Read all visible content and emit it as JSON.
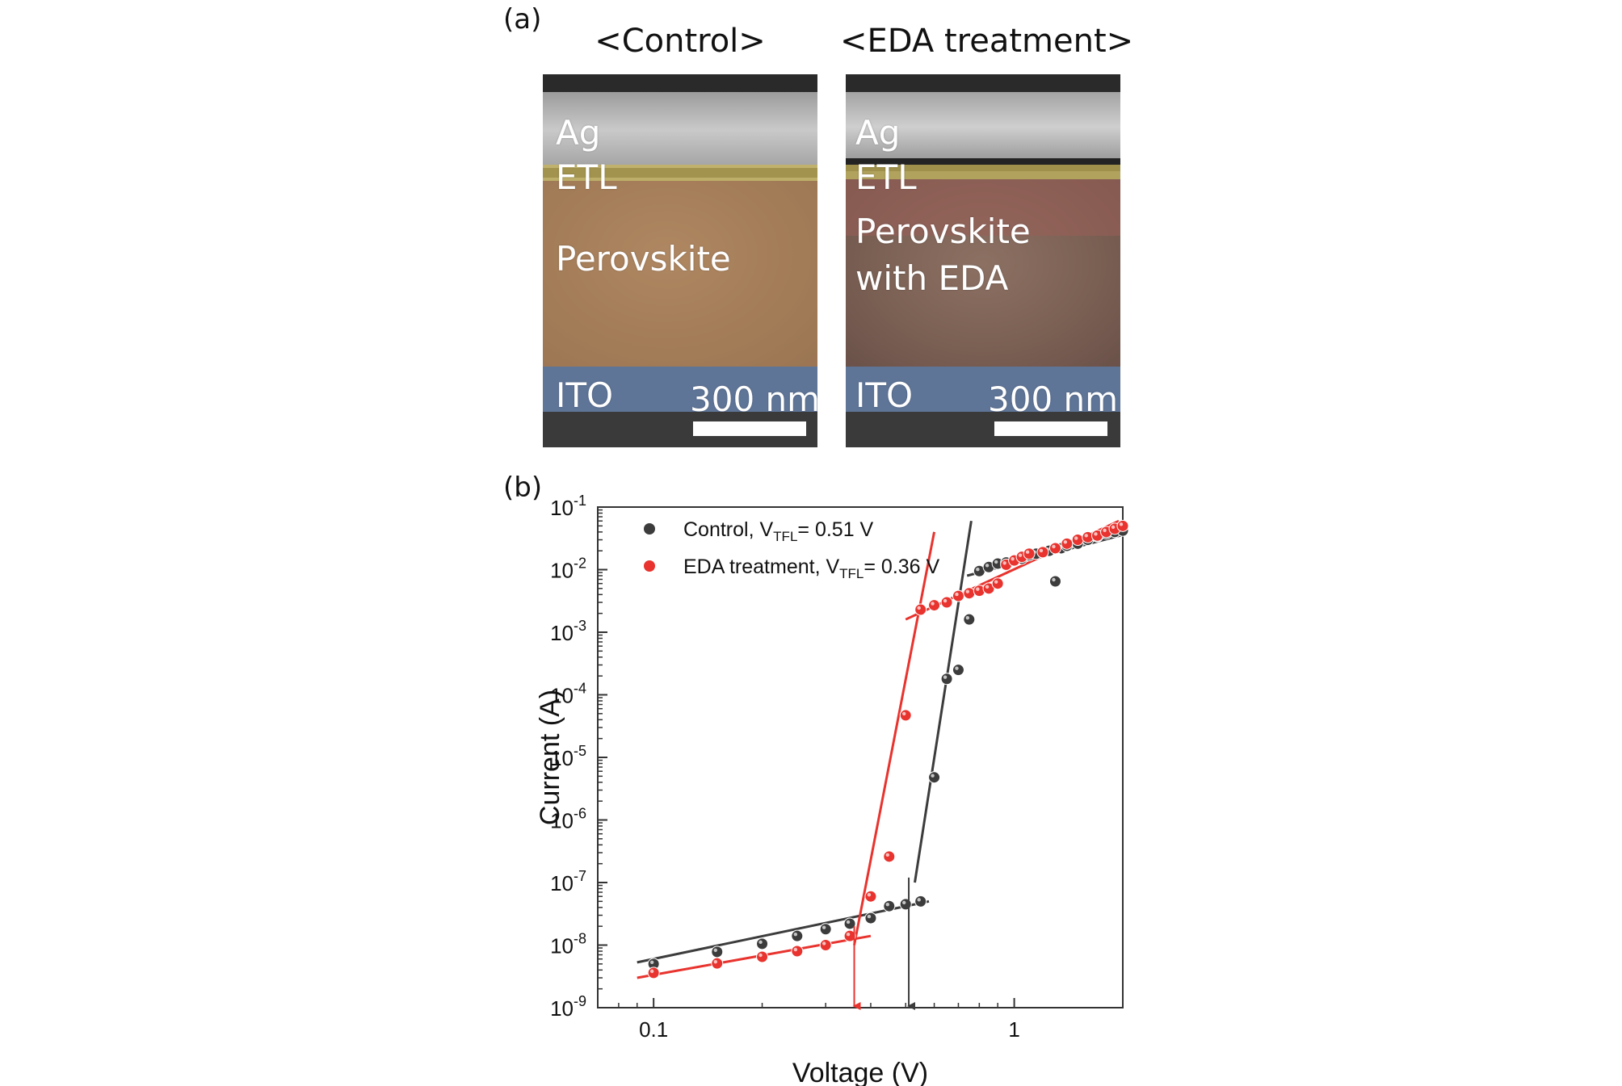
{
  "panel_a": {
    "label": "(a)",
    "control": {
      "title": "<Control>",
      "layers": {
        "ag": "Ag",
        "etl": "ETL",
        "perovskite": "Perovskite",
        "ito": "ITO"
      },
      "scale": "300 nm"
    },
    "eda": {
      "title": "<EDA treatment>",
      "layers": {
        "ag": "Ag",
        "etl": "ETL",
        "perovskite_line1": "Perovskite",
        "perovskite_line2": "with EDA",
        "ito": "ITO"
      },
      "scale": "300 nm"
    },
    "colors": {
      "etl": "#c9b75a",
      "control_perovskite": "#b98a5e",
      "eda_perovskite": "#9b5f58",
      "ito": "#5f7598"
    }
  },
  "panel_b": {
    "label": "(b)",
    "chart_data": {
      "type": "scatter",
      "xlabel": "Voltage (V)",
      "ylabel": "Current (A)",
      "xscale": "log",
      "yscale": "log",
      "xlim": [
        0.07,
        2.0
      ],
      "ylim": [
        1e-09,
        0.1
      ],
      "x_ticks": [
        {
          "value": 0.1,
          "label": "0.1"
        },
        {
          "value": 1,
          "label": "1"
        }
      ],
      "y_ticks": [
        {
          "value": 1e-09,
          "base": "10",
          "exp": "-9"
        },
        {
          "value": 1e-08,
          "base": "10",
          "exp": "-8"
        },
        {
          "value": 1e-07,
          "base": "10",
          "exp": "-7"
        },
        {
          "value": 1e-06,
          "base": "10",
          "exp": "-6"
        },
        {
          "value": 1e-05,
          "base": "10",
          "exp": "-5"
        },
        {
          "value": 0.0001,
          "base": "10",
          "exp": "-4"
        },
        {
          "value": 0.001,
          "base": "10",
          "exp": "-3"
        },
        {
          "value": 0.01,
          "base": "10",
          "exp": "-2"
        },
        {
          "value": 0.1,
          "base": "10",
          "exp": "-1"
        }
      ],
      "legend_position": "top-left",
      "series": [
        {
          "key": "control",
          "legend": {
            "prefix": "Control, V",
            "sub": "TFL",
            "suffix": "= 0.51 V"
          },
          "color": "#3c3c3c",
          "points": [
            [
              0.1,
              5e-09
            ],
            [
              0.15,
              7.8e-09
            ],
            [
              0.2,
              1.05e-08
            ],
            [
              0.25,
              1.4e-08
            ],
            [
              0.3,
              1.8e-08
            ],
            [
              0.35,
              2.2e-08
            ],
            [
              0.4,
              2.7e-08
            ],
            [
              0.45,
              4.2e-08
            ],
            [
              0.5,
              4.5e-08
            ],
            [
              0.55,
              5e-08
            ],
            [
              0.6,
              4.8e-06
            ],
            [
              0.65,
              0.00018
            ],
            [
              0.7,
              0.00025
            ],
            [
              0.75,
              0.0016
            ],
            [
              0.8,
              0.0095
            ],
            [
              0.85,
              0.011
            ],
            [
              0.9,
              0.0125
            ],
            [
              0.95,
              0.013
            ],
            [
              1.0,
              0.014
            ],
            [
              1.05,
              0.015
            ],
            [
              1.1,
              0.017
            ],
            [
              1.15,
              0.018
            ],
            [
              1.2,
              0.019
            ],
            [
              1.25,
              0.02
            ],
            [
              1.3,
              0.0065
            ],
            [
              1.35,
              0.022
            ],
            [
              1.4,
              0.024
            ],
            [
              1.5,
              0.026
            ],
            [
              1.6,
              0.03
            ],
            [
              1.7,
              0.034
            ],
            [
              1.8,
              0.038
            ],
            [
              1.9,
              0.04
            ],
            [
              2.0,
              0.042
            ]
          ],
          "fits": [
            {
              "from": [
                0.09,
                5.3e-09
              ],
              "to": [
                0.58,
                5e-08
              ]
            },
            {
              "from": [
                0.53,
                1e-07
              ],
              "to": [
                0.76,
                0.06
              ]
            },
            {
              "from": [
                0.74,
                0.008
              ],
              "to": [
                2.0,
                0.036
              ]
            }
          ],
          "vtfl": 0.51
        },
        {
          "key": "eda",
          "legend": {
            "prefix": "EDA treatment, V",
            "sub": "TFL",
            "suffix": "= 0.36 V"
          },
          "color": "#e8332e",
          "points": [
            [
              0.1,
              3.6e-09
            ],
            [
              0.15,
              5.1e-09
            ],
            [
              0.2,
              6.5e-09
            ],
            [
              0.25,
              8e-09
            ],
            [
              0.3,
              1e-08
            ],
            [
              0.35,
              1.4e-08
            ],
            [
              0.4,
              6e-08
            ],
            [
              0.45,
              2.6e-07
            ],
            [
              0.5,
              4.7e-05
            ],
            [
              0.55,
              0.0023
            ],
            [
              0.6,
              0.0027
            ],
            [
              0.65,
              0.003
            ],
            [
              0.7,
              0.0038
            ],
            [
              0.75,
              0.0042
            ],
            [
              0.8,
              0.0046
            ],
            [
              0.85,
              0.005
            ],
            [
              0.9,
              0.006
            ],
            [
              0.95,
              0.012
            ],
            [
              1.0,
              0.014
            ],
            [
              1.05,
              0.016
            ],
            [
              1.1,
              0.018
            ],
            [
              1.2,
              0.019
            ],
            [
              1.3,
              0.022
            ],
            [
              1.4,
              0.026
            ],
            [
              1.5,
              0.03
            ],
            [
              1.6,
              0.033
            ],
            [
              1.7,
              0.035
            ],
            [
              1.8,
              0.04
            ],
            [
              1.9,
              0.045
            ],
            [
              2.0,
              0.05
            ]
          ],
          "fits": [
            {
              "from": [
                0.09,
                3e-09
              ],
              "to": [
                0.4,
                1.4e-08
              ]
            },
            {
              "from": [
                0.36,
                1e-08
              ],
              "to": [
                0.6,
                0.04
              ]
            },
            {
              "from": [
                0.5,
                0.0016
              ],
              "to": [
                1.95,
                0.06
              ]
            }
          ],
          "vtfl": 0.36
        }
      ]
    }
  }
}
